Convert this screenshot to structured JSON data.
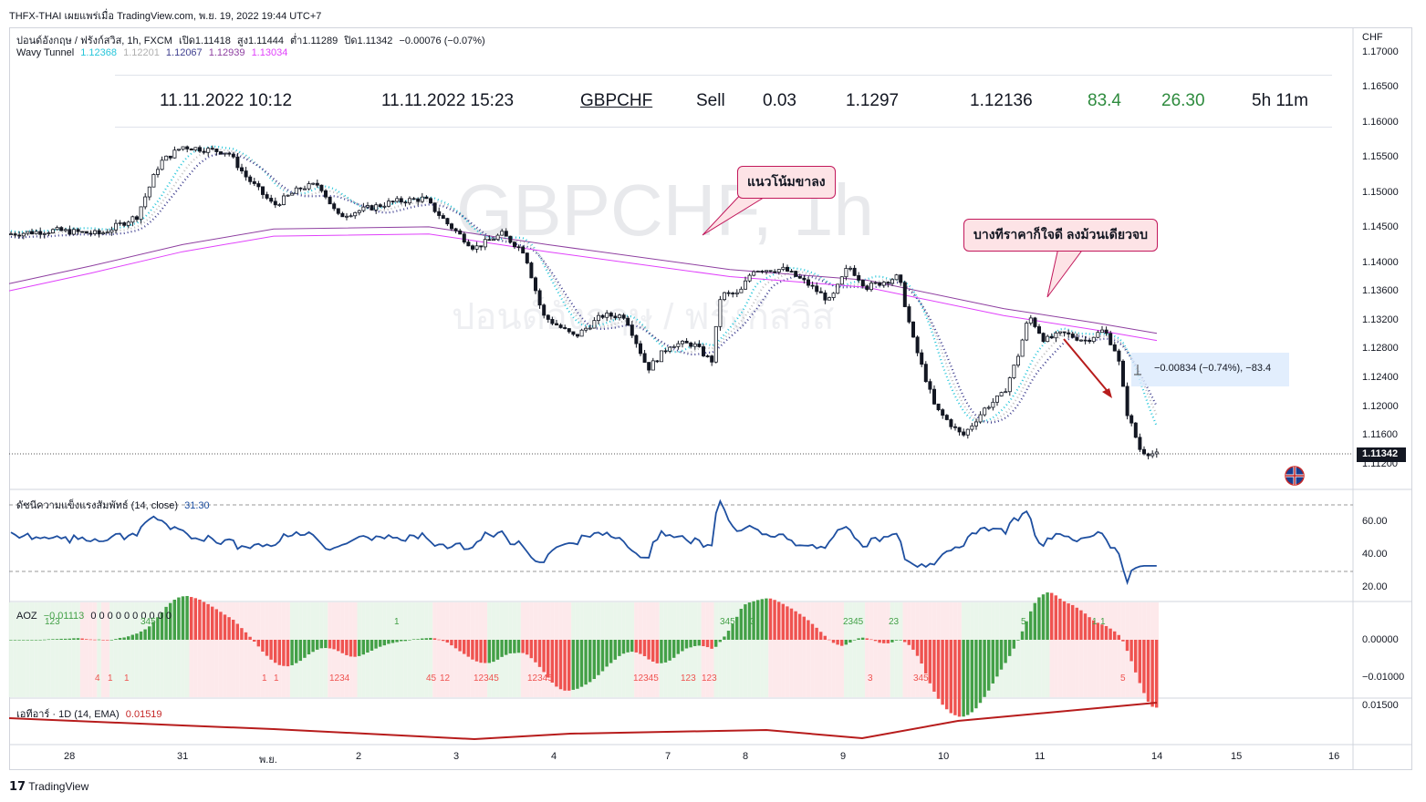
{
  "header": "THFX-THAI เผยแพร่เมื่อ TradingView.com, พ.ย. 19, 2022 19:44 UTC+7",
  "legend": {
    "symbol_line": "ปอนด์อังกฤษ / ฟรังก์สวิส, 1h, FXCM",
    "ohlc": {
      "open_label": "เปิด1.11418",
      "high_label": "สูง1.11444",
      "low_label": "ต่ำ1.11289",
      "close_label": "ปิด1.11342",
      "change": "−0.00076 (−0.07%)"
    },
    "wavy_label": "Wavy Tunnel",
    "wavy_values": [
      {
        "value": "1.12368",
        "color": "#26c6da"
      },
      {
        "value": "1.12201",
        "color": "#b0b0b0"
      },
      {
        "value": "1.12067",
        "color": "#3f3f8f"
      },
      {
        "value": "1.12939",
        "color": "#8e3fa0"
      },
      {
        "value": "1.13034",
        "color": "#e040fb"
      }
    ]
  },
  "trade": {
    "open_time": "11.11.2022 10:12",
    "close_time": "11.11.2022 15:23",
    "symbol": "GBPCHF",
    "side": "Sell",
    "volume": "0.03",
    "open_price": "1.1297",
    "close_price": "1.12136",
    "pips": "83.4",
    "profit": "26.30",
    "duration": "5h 11m"
  },
  "watermark": {
    "symbol": "GBPCHF, 1h",
    "name": "ปอนด์อังกฤษ / ฟรังก์สวิส"
  },
  "callouts": {
    "down_trend": "แนวโน้มขาลง",
    "note": "บางทีราคาก็ใจดี ลงม้วนเดียวจบ"
  },
  "measure_label": "−0.00834 (−0.74%), −83.4",
  "price_axis": {
    "currency": "CHF",
    "ticks": [
      "1.17000",
      "1.16500",
      "1.16000",
      "1.15500",
      "1.15000",
      "1.14500",
      "1.14000",
      "1.13600",
      "1.13200",
      "1.12800",
      "1.12400",
      "1.12000",
      "1.11600",
      "1.11200"
    ],
    "last_price": "1.11342"
  },
  "rsi": {
    "label": "ดัชนีความแข็งแรงสัมพัทธ์ (14, close)",
    "value": "31.30",
    "ticks": [
      "60.00",
      "40.00",
      "20.00"
    ]
  },
  "aoz": {
    "label": "AOZ",
    "value": "−0.01113",
    "zeros": "0 0 0 0 0 0 0 0 0 0",
    "ticks": [
      "0.00000",
      "−0.01000"
    ],
    "top_marks": [
      "123",
      "345",
      "1",
      "345",
      "3",
      "2345",
      "23",
      "5",
      "1",
      "1"
    ],
    "bottom_marks": [
      "4",
      "1",
      "1",
      "1",
      "1",
      "1234",
      "45",
      "12",
      "12345",
      "12345",
      "12345",
      "123",
      "123",
      "3",
      "345",
      "5"
    ]
  },
  "atr": {
    "label": "เอทีอาร์ · 1D (14, EMA)",
    "value": "0.01519",
    "ticks": [
      "0.01500"
    ]
  },
  "time_axis": [
    "28",
    "31",
    "พ.ย.",
    "2",
    "3",
    "4",
    "7",
    "8",
    "9",
    "10",
    "11",
    "14",
    "15",
    "16"
  ],
  "footer": "TradingView",
  "chart_data": {
    "type": "line",
    "title": "",
    "xlabel": "",
    "ylabel": "CHF",
    "x": [
      "28",
      "31",
      "พ.ย.",
      "2",
      "3",
      "4",
      "7",
      "8",
      "9",
      "10",
      "11",
      "14"
    ],
    "ylim": [
      1.1115,
      1.1705
    ],
    "series": [
      {
        "values": [
          1.1445,
          1.1565,
          1.153,
          1.1495,
          1.146,
          1.129,
          1.129,
          1.1395,
          1.137,
          1.1165,
          1.13,
          1.1134
        ]
      }
    ]
  }
}
